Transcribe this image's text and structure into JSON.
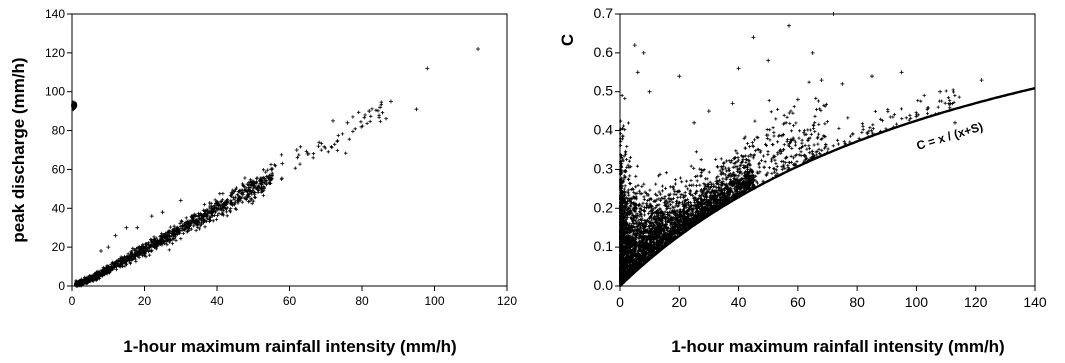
{
  "chart_data": [
    {
      "type": "scatter",
      "title": "",
      "xlabel": "1-hour maximum rainfall intensity (mm/h)",
      "ylabel": "peak discharge (mm/h)",
      "xlim": [
        0,
        120
      ],
      "ylim": [
        0,
        140
      ],
      "x_ticks": [
        "0",
        "20",
        "40",
        "60",
        "80",
        "100",
        "120"
      ],
      "y_ticks": [
        "0",
        "20",
        "40",
        "60",
        "80",
        "100",
        "120",
        "140"
      ],
      "grid": false,
      "marker": "+",
      "trend_points": [
        [
          1,
          0.6
        ],
        [
          5,
          3.5
        ],
        [
          10,
          8.5
        ],
        [
          20,
          19
        ],
        [
          30,
          29
        ],
        [
          40,
          40
        ],
        [
          50,
          50
        ],
        [
          60,
          62
        ],
        [
          70,
          72
        ],
        [
          80,
          84
        ],
        [
          90,
          93
        ]
      ],
      "outliers": [
        [
          112,
          122
        ],
        [
          98,
          112
        ],
        [
          95,
          91
        ],
        [
          88,
          95
        ],
        [
          85,
          92
        ],
        [
          82,
          90
        ],
        [
          76,
          84
        ],
        [
          72,
          85
        ],
        [
          68,
          72
        ],
        [
          65,
          68
        ],
        [
          62,
          70
        ],
        [
          58,
          63
        ],
        [
          55,
          60
        ],
        [
          10,
          20
        ],
        [
          12,
          26
        ],
        [
          15,
          30
        ],
        [
          18,
          30
        ],
        [
          22,
          36
        ],
        [
          25,
          38
        ],
        [
          30,
          44
        ],
        [
          8,
          18
        ]
      ]
    },
    {
      "type": "scatter",
      "title": "",
      "xlabel": "1-hour maximum rainfall intensity (mm/h)",
      "ylabel": "C",
      "xlim": [
        0,
        140
      ],
      "ylim": [
        0,
        0.7
      ],
      "x_ticks": [
        "0",
        "20",
        "40",
        "60",
        "80",
        "100",
        "120",
        "140"
      ],
      "y_ticks": [
        "0.0",
        "0.1",
        "0.2",
        "0.3",
        "0.4",
        "0.5",
        "0.6",
        "0.7"
      ],
      "grid": false,
      "marker": "+",
      "curve": {
        "label": "C = x / (x+S)",
        "S": 135
      },
      "outliers": [
        [
          57,
          0.67
        ],
        [
          72,
          0.7
        ],
        [
          45,
          0.64
        ],
        [
          65,
          0.6
        ],
        [
          5,
          0.62
        ],
        [
          8,
          0.6
        ],
        [
          6,
          0.55
        ],
        [
          10,
          0.5
        ],
        [
          20,
          0.54
        ],
        [
          40,
          0.56
        ],
        [
          50,
          0.58
        ],
        [
          68,
          0.53
        ],
        [
          75,
          0.52
        ],
        [
          85,
          0.54
        ],
        [
          95,
          0.55
        ],
        [
          108,
          0.5
        ],
        [
          122,
          0.53
        ],
        [
          113,
          0.42
        ],
        [
          30,
          0.45
        ],
        [
          25,
          0.42
        ],
        [
          38,
          0.47
        ],
        [
          60,
          0.48
        ]
      ]
    }
  ]
}
